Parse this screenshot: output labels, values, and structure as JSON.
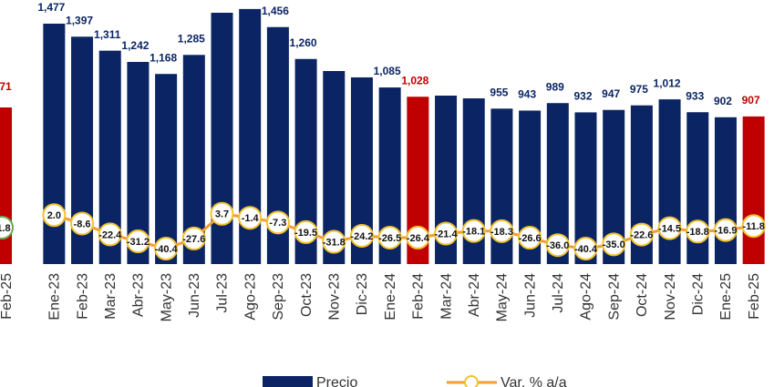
{
  "chart_data": {
    "type": "bar",
    "categories": [
      "Ene-23",
      "Feb-23",
      "Mar-23",
      "Abr-23",
      "May-23",
      "Jun-23",
      "Jul-23",
      "Ago-23",
      "Sep-23",
      "Oct-23",
      "Nov-23",
      "Dic-23",
      "Ene-24",
      "Feb-24",
      "Mar-24",
      "Abr-24",
      "May-24",
      "Jun-24",
      "Jul-24",
      "Ago-24",
      "Sep-24",
      "Oct-24",
      "Nov-24",
      "Dic-24",
      "Ene-25",
      "Feb-25"
    ],
    "series": [
      {
        "name": "Precio",
        "color": "#0b2463",
        "colors": [
          "#0b2463",
          "#0b2463",
          "#0b2463",
          "#0b2463",
          "#0b2463",
          "#0b2463",
          "#0b2463",
          "#0b2463",
          "#0b2463",
          "#0b2463",
          "#0b2463",
          "#0b2463",
          "#0b2463",
          "#c00000",
          "#0b2463",
          "#0b2463",
          "#0b2463",
          "#0b2463",
          "#0b2463",
          "#0b2463",
          "#0b2463",
          "#0b2463",
          "#0b2463",
          "#0b2463",
          "#0b2463",
          "#c00000"
        ],
        "values": [
          1477,
          1397,
          1311,
          1242,
          1168,
          1285,
          1544,
          1567,
          1456,
          1260,
          1186,
          1147,
          1085,
          1028,
          1035,
          1018,
          955,
          943,
          989,
          932,
          947,
          975,
          1012,
          933,
          902,
          907
        ],
        "value_labels": [
          "1,477",
          "1,397",
          "1,311",
          "1,242",
          "1,168",
          "1,285",
          null,
          null,
          "1,456",
          "1,260",
          null,
          null,
          "1,085",
          "1,028",
          null,
          null,
          "955",
          "943",
          "989",
          "932",
          "947",
          "975",
          "1,012",
          "933",
          "902",
          "907"
        ]
      },
      {
        "name": "Var. % a/a",
        "color": "#f39c35",
        "axis": "y2",
        "marker_edge": "#f2c12e",
        "values": [
          2.0,
          -8.6,
          -22.4,
          -31.2,
          -40.4,
          -27.6,
          3.7,
          -1.4,
          -7.3,
          -19.5,
          -31.8,
          -24.2,
          -26.5,
          -26.4,
          -21.4,
          -18.1,
          -18.3,
          -26.6,
          -36.0,
          -40.4,
          -35.0,
          -22.6,
          -14.5,
          -18.8,
          -16.9,
          -11.8
        ],
        "value_labels": [
          "2.0",
          "-8.6",
          "-22.4",
          "-31.2",
          "-40.4",
          "-27.6",
          "3.7",
          "-1.4",
          "-7.3",
          "-19.5",
          "-31.8",
          "-24.2",
          "-26.5",
          "-26.4",
          "-21.4",
          "-18.1",
          "-18.3",
          "-26.6",
          "-36.0",
          "-40.4",
          "-35.0",
          "-22.6",
          "-14.5",
          "-18.8",
          "-16.9",
          "-11.8"
        ]
      }
    ],
    "ylim": [
      0,
      1600
    ],
    "y2lim": [
      -60,
      270
    ],
    "legend": "bottom"
  },
  "left_fragment": {
    "bar_label": "71",
    "line_label": "1.8",
    "category": "Feb-25"
  }
}
